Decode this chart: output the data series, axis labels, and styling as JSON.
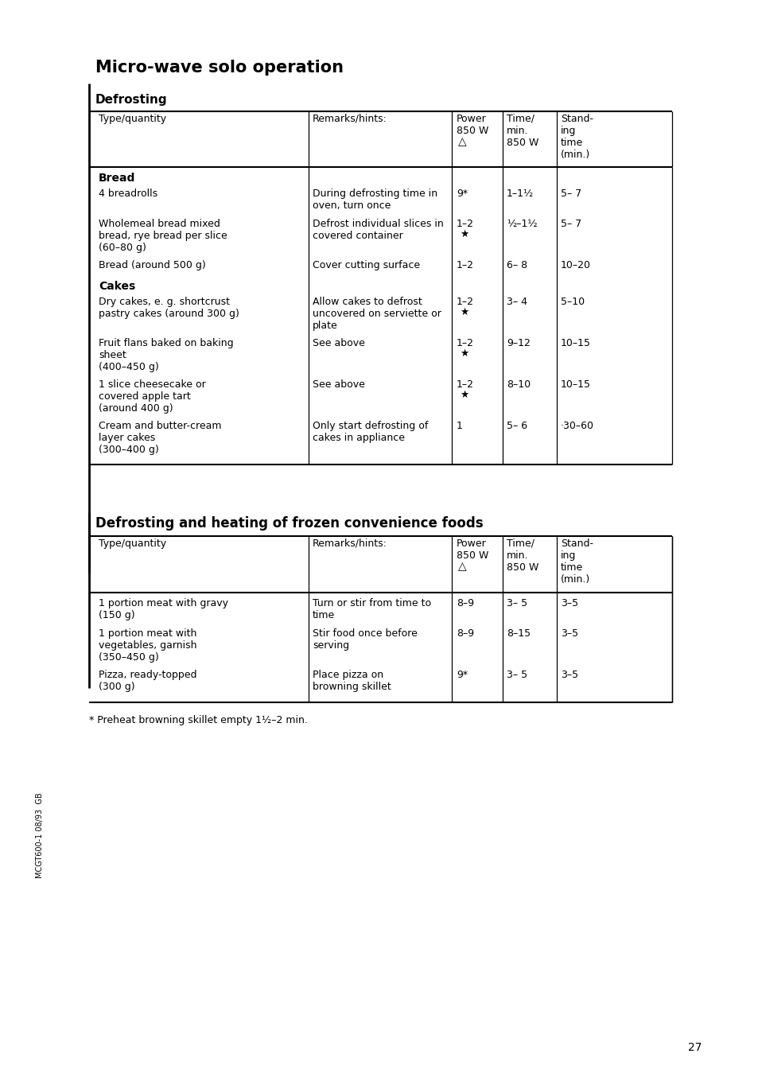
{
  "page_title": "Micro-wave solo operation",
  "background_color": "#ffffff",
  "section1_title": "Defrosting",
  "section2_title": "Defrosting and heating of frozen convenience foods",
  "footnote": "* Preheat browning skillet empty 1½–2 min.",
  "page_number": "27",
  "side_text": "MCGT600-1 08/93  GB",
  "title_fontsize": 15,
  "section_fontsize": 11,
  "header_fontsize": 9,
  "body_fontsize": 9,
  "tl": 120,
  "tr": 845,
  "c1": 388,
  "c2": 568,
  "c3": 632,
  "c4": 700,
  "defrost_rows": [
    {
      "bold": true,
      "type": "Bread",
      "remarks": "",
      "power": "",
      "time": "",
      "standing": ""
    },
    {
      "bold": false,
      "type": "4 breadrolls",
      "remarks": "During defrosting time in\noven, turn once",
      "power": "9*",
      "time": "1–1½",
      "standing": "5– 7",
      "power2": ""
    },
    {
      "bold": false,
      "type": "Wholemeal bread mixed\nbread, rye bread per slice\n(60–80 g)",
      "remarks": "Defrost individual slices in\ncovered container",
      "power": "1–2",
      "power2": "★",
      "time": "½–1½",
      "standing": "5– 7"
    },
    {
      "bold": false,
      "type": "Bread (around 500 g)",
      "remarks": "Cover cutting surface",
      "power": "1–2",
      "power2": "",
      "time": "6– 8",
      "standing": "10–20"
    },
    {
      "bold": true,
      "type": "Cakes",
      "remarks": "",
      "power": "",
      "time": "",
      "standing": ""
    },
    {
      "bold": false,
      "type": "Dry cakes, e. g. shortcrust\npastry cakes (around 300 g)",
      "remarks": "Allow cakes to defrost\nuncovered on serviette or\nplate",
      "power": "1–2",
      "power2": "★",
      "time": "3– 4",
      "standing": "5–10"
    },
    {
      "bold": false,
      "type": "Fruit flans baked on baking\nsheet\n(400–450 g)",
      "remarks": "See above",
      "power": "1–2",
      "power2": "★",
      "time": "9–12",
      "standing": "10–15"
    },
    {
      "bold": false,
      "type": "1 slice cheesecake or\ncovered apple tart\n(around 400 g)",
      "remarks": "See above",
      "power": "1–2",
      "power2": "★",
      "time": "8–10",
      "standing": "10–15"
    },
    {
      "bold": false,
      "type": "Cream and butter-cream\nlayer cakes\n(300–400 g)",
      "remarks": "Only start defrosting of\ncakes in appliance",
      "power": "1",
      "power2": "",
      "time": "5– 6",
      "standing": "·30–60"
    }
  ],
  "frozen_rows": [
    {
      "type": "1 portion meat with gravy\n(150 g)",
      "remarks": "Turn or stir from time to\ntime",
      "power": "8–9",
      "time": "3– 5",
      "standing": "3–5"
    },
    {
      "type": "1 portion meat with\nvegetables, garnish\n(350–450 g)",
      "remarks": "Stir food once before\nserving",
      "power": "8–9",
      "time": "8–15",
      "standing": "3–5"
    },
    {
      "type": "Pizza, ready-topped\n(300 g)",
      "remarks": "Place pizza on\nbrowning skillet",
      "power": "9*",
      "time": "3– 5",
      "standing": "3–5"
    }
  ]
}
